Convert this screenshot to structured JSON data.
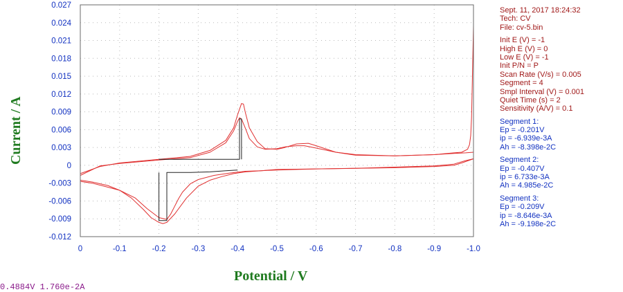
{
  "chart_data": {
    "type": "line",
    "xlabel": "Potential / V",
    "ylabel": "Current / A",
    "x_ticks": [
      "0",
      "-0.1",
      "-0.2",
      "-0.3",
      "-0.4",
      "-0.5",
      "-0.6",
      "-0.7",
      "-0.8",
      "-0.9",
      "-1.0"
    ],
    "y_ticks": [
      "0.027",
      "0.024",
      "0.021",
      "0.018",
      "0.015",
      "0.012",
      "0.009",
      "0.006",
      "0.003",
      "0",
      "-0.003",
      "-0.006",
      "-0.009",
      "-0.012"
    ],
    "xlim": [
      0,
      -1.0
    ],
    "ylim": [
      -0.012,
      0.027
    ],
    "grid": true,
    "series": [
      {
        "color": "#e03030",
        "x": [
          0,
          -0.03,
          -0.07,
          -0.1,
          -0.13,
          -0.16,
          -0.18,
          -0.2,
          -0.21,
          -0.22,
          -0.24,
          -0.27,
          -0.3,
          -0.33,
          -0.36,
          -0.39,
          -0.42,
          -0.46,
          -0.5,
          -0.6,
          -0.7,
          -0.8,
          -0.9,
          -0.95,
          -0.98,
          -1.0
        ],
        "y": [
          -0.0025,
          -0.0028,
          -0.0034,
          -0.0042,
          -0.0055,
          -0.0074,
          -0.0088,
          -0.0096,
          -0.0098,
          -0.0096,
          -0.0082,
          -0.0055,
          -0.0035,
          -0.0025,
          -0.0019,
          -0.0014,
          -0.0011,
          -0.0009,
          -0.0007,
          -0.0006,
          -0.0005,
          -0.0003,
          -0.0001,
          0.0002,
          0.0008,
          0.0011
        ]
      },
      {
        "color": "#e03030",
        "x": [
          -1.0,
          -0.997,
          -0.995,
          -0.993,
          -0.99,
          -0.985,
          -0.97,
          -0.95,
          -0.9,
          -0.8,
          -0.7,
          -0.65,
          -0.6,
          -0.58,
          -0.55,
          -0.52,
          -0.5,
          -0.47,
          -0.45,
          -0.43,
          -0.42,
          -0.415,
          -0.41,
          -0.4,
          -0.39,
          -0.37,
          -0.33,
          -0.28,
          -0.2,
          -0.1,
          -0.05,
          0
        ],
        "y": [
          0.0235,
          0.014,
          0.008,
          0.005,
          0.0035,
          0.0027,
          0.0022,
          0.0021,
          0.0018,
          0.0016,
          0.0017,
          0.0022,
          0.0033,
          0.0037,
          0.0036,
          0.003,
          0.0027,
          0.0028,
          0.004,
          0.0063,
          0.0088,
          0.0103,
          0.0104,
          0.0085,
          0.0063,
          0.0042,
          0.0025,
          0.0015,
          0.001,
          0.0004,
          -0.0002,
          -0.0014
        ]
      },
      {
        "color": "#e03030",
        "x": [
          0,
          -0.05,
          -0.1,
          -0.2,
          -0.28,
          -0.33,
          -0.37,
          -0.39,
          -0.4,
          -0.405,
          -0.41,
          -0.42,
          -0.43,
          -0.45,
          -0.47,
          -0.5,
          -0.52,
          -0.55,
          -0.57,
          -0.6,
          -0.65,
          -0.7,
          -0.8,
          -0.9,
          -0.95,
          -0.98,
          -1.0
        ],
        "y": [
          -0.0017,
          -0.0001,
          0.0003,
          0.0009,
          0.0013,
          0.0022,
          0.0038,
          0.0058,
          0.0074,
          0.008,
          0.0078,
          0.0062,
          0.0045,
          0.0031,
          0.0027,
          0.0028,
          0.0031,
          0.0033,
          0.0033,
          0.0029,
          0.0022,
          0.0018,
          0.0016,
          0.0018,
          0.002,
          0.0021,
          0.0022
        ]
      },
      {
        "color": "#e03030",
        "x": [
          -1.0,
          -0.97,
          -0.95,
          -0.9,
          -0.8,
          -0.6,
          -0.5,
          -0.46,
          -0.42,
          -0.38,
          -0.34,
          -0.3,
          -0.28,
          -0.26,
          -0.25,
          -0.24,
          -0.23,
          -0.22,
          -0.2,
          -0.17,
          -0.14,
          -0.1,
          -0.06,
          -0.03,
          0
        ],
        "y": [
          0.0011,
          0.0004,
          0,
          -0.0002,
          -0.0004,
          -0.0006,
          -0.0008,
          -0.0009,
          -0.001,
          -0.0013,
          -0.0017,
          -0.0024,
          -0.0031,
          -0.0045,
          -0.0056,
          -0.0069,
          -0.0082,
          -0.0091,
          -0.0088,
          -0.0073,
          -0.0055,
          -0.0042,
          -0.0035,
          -0.003,
          -0.0027
        ]
      },
      {
        "color": "#202020",
        "x": [
          -0.2,
          -0.22,
          -0.24,
          -0.26,
          -0.3,
          -0.34,
          -0.38,
          -0.4,
          -0.405,
          -0.405,
          -0.41,
          -0.41
        ],
        "y": [
          0.001,
          0.001,
          0.001,
          0.001,
          0.001,
          0.001,
          0.001,
          0.001,
          0.001,
          0.0078,
          0.0078,
          0.001
        ]
      },
      {
        "color": "#202020",
        "x": [
          -0.4,
          -0.37,
          -0.33,
          -0.28,
          -0.24,
          -0.22,
          -0.22,
          -0.2,
          -0.2
        ],
        "y": [
          -0.0008,
          -0.0009,
          -0.0011,
          -0.0012,
          -0.0012,
          -0.0012,
          -0.0093,
          -0.0093,
          -0.0012
        ]
      }
    ]
  },
  "info": {
    "date_time": "Sept. 11, 2017    18:24:32",
    "tech": "Tech: CV",
    "file": "File: cv-5.bin",
    "params": [
      "Init E (V) = -1",
      "High E (V) = 0",
      "Low E (V) = -1",
      "Init P/N = P",
      "Scan Rate (V/s) = 0.005",
      "Segment = 4",
      "Smpl Interval (V) = 0.001",
      "Quiet Time (s) = 2",
      "Sensitivity (A/V) = 0.1"
    ],
    "segments": [
      {
        "title": "Segment 1:",
        "ep": "Ep = -0.201V",
        "ip": "ip = -6.939e-3A",
        "ah": "Ah = -8.398e-2C"
      },
      {
        "title": "Segment 2:",
        "ep": "Ep = -0.407V",
        "ip": "ip = 6.733e-3A",
        "ah": "Ah = 4.985e-2C"
      },
      {
        "title": "Segment 3:",
        "ep": "Ep = -0.209V",
        "ip": "ip = -8.646e-3A",
        "ah": "Ah = -9.198e-2C"
      }
    ]
  },
  "cursor_readout": "0.4884V  1.760e-2A",
  "colors": {
    "axis_label": "#1f7a1f",
    "ticks": "#1030c0",
    "params": "#a01818",
    "segments": "#1030c0",
    "trace": "#e03030",
    "baseline": "#202020"
  }
}
